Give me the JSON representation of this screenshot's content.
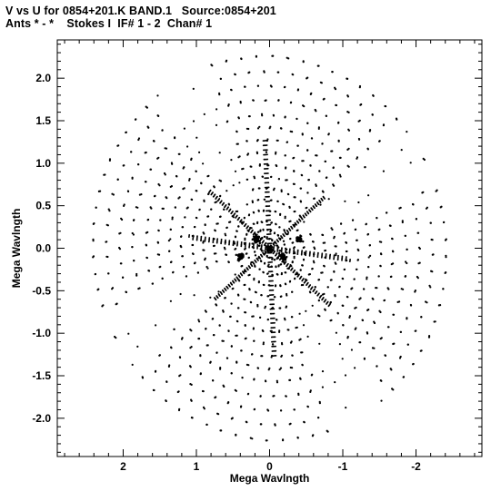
{
  "header": {
    "line1": "V vs U for 0854+201.K BAND.1   Source:0854+201",
    "line2": "Ants * - *    Stokes I  IF# 1 - 2  Chan# 1"
  },
  "chart_data": {
    "type": "scatter",
    "xlabel": "Mega Wavlngth",
    "ylabel": "Mega Wavlngth",
    "xlim": [
      2.9,
      -2.9
    ],
    "ylim": [
      -2.45,
      2.45
    ],
    "x_reversed": true,
    "x_ticks": [
      2,
      1,
      0,
      -1,
      -2
    ],
    "x_tick_labels": [
      "2",
      "1",
      "0",
      "-1",
      "-2"
    ],
    "y_ticks": [
      2.0,
      1.5,
      1.0,
      0.5,
      0.0,
      -0.5,
      -1.0,
      -1.5,
      -2.0
    ],
    "y_tick_labels": [
      "2.0",
      "1.5",
      "1.0",
      "0.5",
      "0.0",
      "-0.5",
      "-1.0",
      "-1.5",
      "-2.0"
    ],
    "grid": false,
    "marker_color": "#000000",
    "description_of_pattern": "symmetric uv-coverage: concentric elliptical arcs of points forming four-armed pattern",
    "tracks": [
      {
        "r": 0.13,
        "a_start": 0,
        "a_end": 360,
        "n": 24
      },
      {
        "r": 0.22,
        "a_start": 0,
        "a_end": 360,
        "n": 30
      },
      {
        "r": 0.32,
        "a_start": 0,
        "a_end": 360,
        "n": 34
      },
      {
        "r": 0.45,
        "a_start": 0,
        "a_end": 360,
        "n": 40
      },
      {
        "r": 0.58,
        "a_start": 0,
        "a_end": 360,
        "n": 44
      },
      {
        "r": 0.72,
        "a_start": 0,
        "a_end": 360,
        "n": 48
      },
      {
        "r": 0.86,
        "a_start": 0,
        "a_end": 360,
        "n": 52
      },
      {
        "r": 1.0,
        "a_start": 0,
        "a_end": 360,
        "n": 56
      },
      {
        "r": 1.15,
        "a_start": 0,
        "a_end": 360,
        "n": 60
      },
      {
        "r": 1.3,
        "a_start": 0,
        "a_end": 360,
        "n": 62
      },
      {
        "r": 1.45,
        "a_start": 0,
        "a_end": 360,
        "n": 64
      },
      {
        "r": 1.6,
        "a_start": 0,
        "a_end": 360,
        "n": 66
      },
      {
        "r": 1.78,
        "a_start": 0,
        "a_end": 360,
        "n": 68
      },
      {
        "r": 1.95,
        "a_start": 0,
        "a_end": 360,
        "n": 70
      },
      {
        "r": 2.12,
        "a_start": 0,
        "a_end": 360,
        "n": 70
      },
      {
        "r": 2.3,
        "a_start": 0,
        "a_end": 360,
        "n": 72
      }
    ],
    "clusters": [
      {
        "u": 0.0,
        "v": 0.0
      },
      {
        "u": 0.18,
        "v": 0.1
      },
      {
        "u": -0.18,
        "v": -0.1
      },
      {
        "u": -0.4,
        "v": 0.1
      },
      {
        "u": 0.4,
        "v": -0.1
      }
    ]
  }
}
